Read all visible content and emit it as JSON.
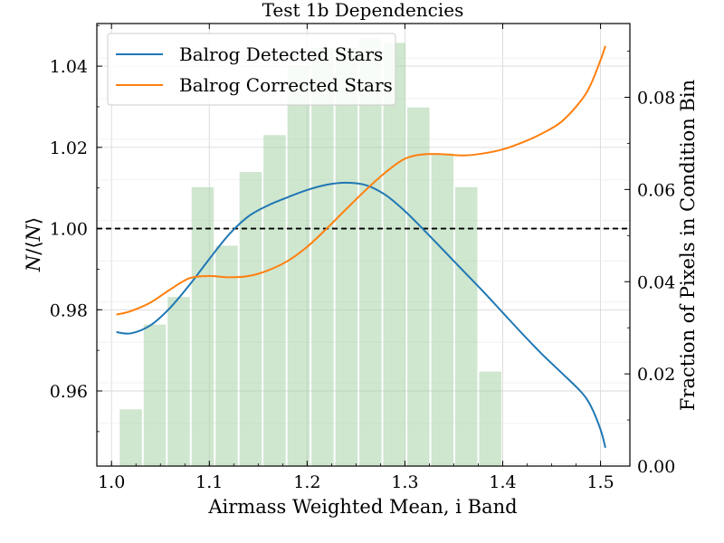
{
  "chart_data": {
    "type": "line",
    "title": "Test 1b Dependencies",
    "xlabel": "Airmass Weighted Mean, i Band",
    "ylabel": "N/⟨N⟩",
    "y2label": "Fraction of Pixels in Condition Bin",
    "xlim": [
      0.985,
      1.53
    ],
    "ylim": [
      0.9415,
      1.0505
    ],
    "y2lim": [
      0.0,
      0.096
    ],
    "x_ticks": [
      "1.0",
      "1.1",
      "1.2",
      "1.3",
      "1.4",
      "1.5"
    ],
    "x_tick_values": [
      1.0,
      1.1,
      1.2,
      1.3,
      1.4,
      1.5
    ],
    "y_ticks": [
      "0.96",
      "0.98",
      "1.00",
      "1.02",
      "1.04"
    ],
    "y_tick_values": [
      0.96,
      0.98,
      1.0,
      1.02,
      1.04
    ],
    "y2_ticks": [
      "0.00",
      "0.02",
      "0.04",
      "0.06",
      "0.08"
    ],
    "y2_tick_values": [
      0.0,
      0.02,
      0.04,
      0.06,
      0.08
    ],
    "grid": true,
    "legend_position": "top-left",
    "reference_line": {
      "y": 1.0,
      "style": "dashed",
      "color": "#000000"
    },
    "series": [
      {
        "name": "Balrog Detected Stars",
        "color": "#1f77b4",
        "x": [
          1.005,
          1.02,
          1.04,
          1.06,
          1.08,
          1.1,
          1.12,
          1.14,
          1.16,
          1.18,
          1.2,
          1.22,
          1.24,
          1.26,
          1.28,
          1.3,
          1.32,
          1.34,
          1.36,
          1.38,
          1.4,
          1.42,
          1.44,
          1.46,
          1.48,
          1.49,
          1.5,
          1.505
        ],
        "y": [
          0.9745,
          0.9742,
          0.9762,
          0.9805,
          0.9862,
          0.9925,
          0.9985,
          1.003,
          1.0057,
          1.0077,
          1.0095,
          1.0108,
          1.0113,
          1.0107,
          1.0083,
          1.0043,
          0.9995,
          0.9945,
          0.9895,
          0.9845,
          0.9793,
          0.9741,
          0.9691,
          0.9645,
          0.9598,
          0.9563,
          0.9505,
          0.946
        ]
      },
      {
        "name": "Balrog Corrected Stars",
        "color": "#ff7f0e",
        "x": [
          1.005,
          1.02,
          1.04,
          1.06,
          1.08,
          1.1,
          1.12,
          1.14,
          1.16,
          1.18,
          1.2,
          1.22,
          1.24,
          1.26,
          1.28,
          1.3,
          1.32,
          1.34,
          1.36,
          1.38,
          1.4,
          1.42,
          1.44,
          1.46,
          1.48,
          1.49,
          1.5,
          1.505
        ],
        "y": [
          0.9788,
          0.9797,
          0.9818,
          0.985,
          0.9878,
          0.9883,
          0.988,
          0.9883,
          0.9897,
          0.992,
          0.9955,
          1.0,
          1.0048,
          1.0095,
          1.0138,
          1.0172,
          1.0183,
          1.0183,
          1.018,
          1.0185,
          1.0195,
          1.0212,
          1.0234,
          1.0263,
          1.0315,
          1.0355,
          1.0415,
          1.045
        ]
      }
    ],
    "histogram": {
      "name": "Fraction of pixels",
      "color": "#a8d2a8",
      "axis": "right",
      "bin_left": [
        1.0075,
        1.032,
        1.0565,
        1.081,
        1.1055,
        1.13,
        1.1545,
        1.179,
        1.2035,
        1.228,
        1.2525,
        1.277,
        1.3015,
        1.326,
        1.3505,
        1.375
      ],
      "bin_width": 0.0245,
      "values": [
        0.0123,
        0.0307,
        0.0367,
        0.0605,
        0.0478,
        0.0638,
        0.0718,
        0.0868,
        0.0908,
        0.0908,
        0.0928,
        0.0918,
        0.0778,
        0.0678,
        0.0605,
        0.0205
      ]
    }
  }
}
